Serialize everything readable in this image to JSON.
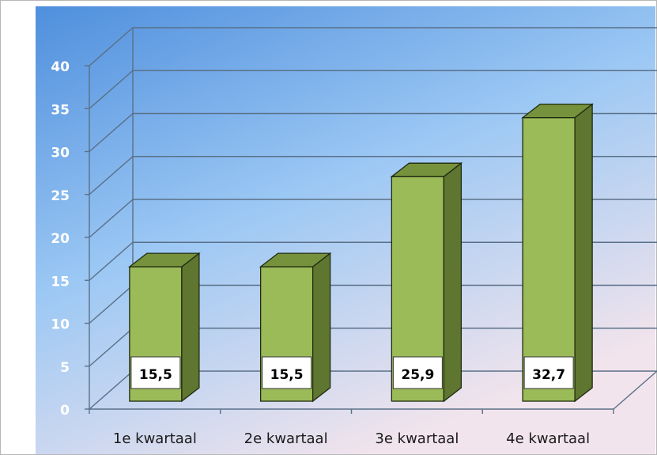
{
  "chart_data": {
    "type": "bar",
    "categories": [
      "1e kwartaal",
      "2e kwartaal",
      "3e kwartaal",
      "4e kwartaal"
    ],
    "values": [
      15.5,
      15.5,
      25.9,
      32.7
    ],
    "value_labels": [
      "15,5",
      "15,5",
      "25,9",
      "32,7"
    ],
    "y_ticks": [
      "0",
      "5",
      "10",
      "15",
      "20",
      "25",
      "30",
      "35",
      "40"
    ],
    "ylim": [
      0,
      40
    ],
    "title": "",
    "xlabel": "",
    "ylabel": "",
    "grid": true,
    "three_d": true,
    "colors": {
      "bar_front": "#9bbb59",
      "bar_side": "#5f7630",
      "bar_top": "#76923c",
      "bar_edge": "#1f2a10",
      "grid": "#5a7088",
      "tick_label": "#ffffff",
      "category_label": "#1a1a1a",
      "background_top": "#4f8fdd",
      "background_mid": "#9cc8f4",
      "background_bottom": "#f2e4ec"
    }
  }
}
